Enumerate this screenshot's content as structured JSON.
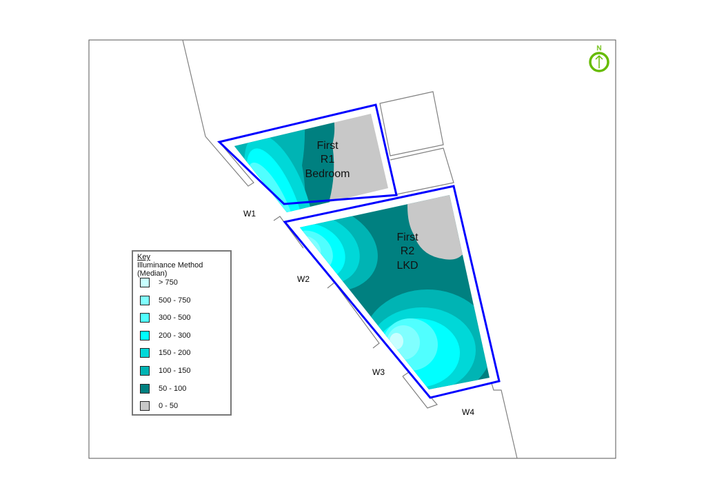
{
  "rooms": [
    {
      "floor": "First",
      "id": "R1",
      "name": "Bedroom"
    },
    {
      "floor": "First",
      "id": "R2",
      "name": "LKD"
    }
  ],
  "windows": [
    "W1",
    "W2",
    "W3",
    "W4"
  ],
  "north_label": "N",
  "legend": {
    "title": "Key",
    "method": "Illuminance Method (Median)",
    "items": [
      {
        "label": "> 750",
        "color": "#c8ffff"
      },
      {
        "label": "500 - 750",
        "color": "#80ffff"
      },
      {
        "label": "300 - 500",
        "color": "#50ffff"
      },
      {
        "label": "200 - 300",
        "color": "#00ffff"
      },
      {
        "label": "150 - 200",
        "color": "#00d8d8"
      },
      {
        "label": "100 - 150",
        "color": "#00b4b4"
      },
      {
        "label": "50 - 100",
        "color": "#008080"
      },
      {
        "label": "0 - 50",
        "color": "#c8c8c8"
      }
    ]
  },
  "colors": {
    "room_outline": "#0000ff",
    "north_arrow": "#66bb00",
    "walls": "#808080"
  }
}
